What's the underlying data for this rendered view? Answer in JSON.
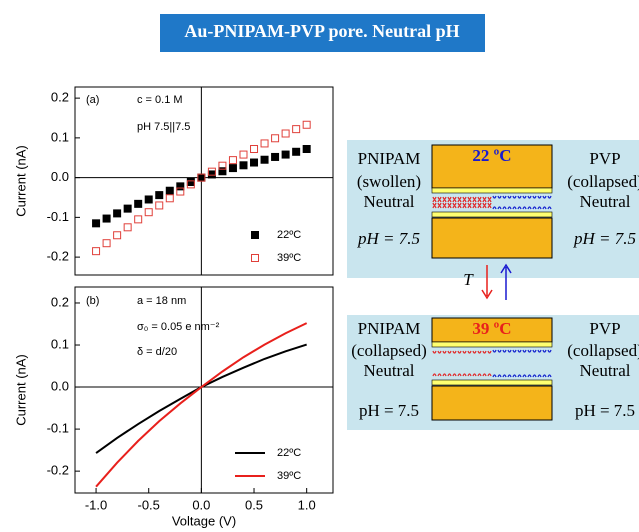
{
  "banner": {
    "title": "Au-PNIPAM-PVP pore. Neutral pH"
  },
  "chart_data": [
    {
      "type": "scatter",
      "ylabel": "Current (nA)",
      "annotations": [
        "(a)",
        "c = 0.1 M",
        "pH 7.5||7.5"
      ],
      "x": [
        -1.0,
        -0.9,
        -0.8,
        -0.7,
        -0.6,
        -0.5,
        -0.4,
        -0.3,
        -0.2,
        -0.1,
        0.0,
        0.1,
        0.2,
        0.3,
        0.4,
        0.5,
        0.6,
        0.7,
        0.8,
        0.9,
        1.0
      ],
      "series": [
        {
          "name": "22ºC",
          "color": "#000000",
          "marker": "filled",
          "values": [
            -0.115,
            -0.103,
            -0.09,
            -0.078,
            -0.066,
            -0.055,
            -0.044,
            -0.033,
            -0.022,
            -0.011,
            0.0,
            0.008,
            0.016,
            0.024,
            0.031,
            0.038,
            0.045,
            0.052,
            0.058,
            0.065,
            0.072
          ]
        },
        {
          "name": "39ºC",
          "color": "#e0403a",
          "marker": "open",
          "values": [
            -0.185,
            -0.165,
            -0.145,
            -0.125,
            -0.105,
            -0.087,
            -0.07,
            -0.052,
            -0.035,
            -0.017,
            0.0,
            0.015,
            0.03,
            0.044,
            0.058,
            0.072,
            0.086,
            0.099,
            0.111,
            0.122,
            0.133
          ]
        }
      ],
      "xlim": [
        -1.2,
        1.25
      ],
      "ylim": [
        -0.245,
        0.228
      ],
      "yticks": [
        -0.2,
        -0.1,
        {
          "value": 0,
          "label": "0.0"
        },
        0.1,
        0.2
      ],
      "legend": "lower right"
    },
    {
      "type": "line",
      "ylabel": "Current (nA)",
      "xlabel": "Voltage (V)",
      "annotations": [
        "(b)",
        "a = 18 nm",
        "σ₀ = 0.05 e nm⁻²",
        "δ = d/20"
      ],
      "x": [
        -1.0,
        -0.8,
        -0.6,
        -0.4,
        -0.2,
        0.0,
        0.2,
        0.4,
        0.6,
        0.8,
        1.0
      ],
      "series": [
        {
          "name": "22ºC",
          "color": "#000000",
          "values": [
            -0.157,
            -0.121,
            -0.088,
            -0.057,
            -0.028,
            0.0,
            0.024,
            0.046,
            0.067,
            0.085,
            0.101
          ]
        },
        {
          "name": "39ºC",
          "color": "#e8201c",
          "values": [
            -0.237,
            -0.18,
            -0.128,
            -0.081,
            -0.039,
            0.0,
            0.037,
            0.071,
            0.101,
            0.128,
            0.152
          ]
        }
      ],
      "xlim": [
        -1.2,
        1.25
      ],
      "ylim": [
        -0.252,
        0.238
      ],
      "xticks": [
        {
          "value": -1,
          "label": "-1.0"
        },
        -0.5,
        {
          "value": 0,
          "label": "0.0"
        },
        0.5,
        {
          "value": 1,
          "label": "1.0"
        }
      ],
      "yticks": [
        -0.2,
        -0.1,
        {
          "value": 0,
          "label": "0.0"
        },
        0.1,
        0.2
      ],
      "legend": "lower right"
    }
  ],
  "diagram": {
    "top": {
      "temperature": "22 ºC",
      "left": [
        "PNIPAM",
        "(swollen)",
        "Neutral",
        "pH = 7.5"
      ],
      "right": [
        "PVP",
        "(collapsed)",
        "Neutral",
        "pH = 7.5"
      ]
    },
    "arrow_label": "T",
    "bottom": {
      "temperature": "39 ºC",
      "left": [
        "PNIPAM",
        "(collapsed)",
        "Neutral",
        "pH = 7.5"
      ],
      "right": [
        "PVP",
        "(collapsed)",
        "Neutral",
        "pH = 7.5"
      ]
    }
  }
}
